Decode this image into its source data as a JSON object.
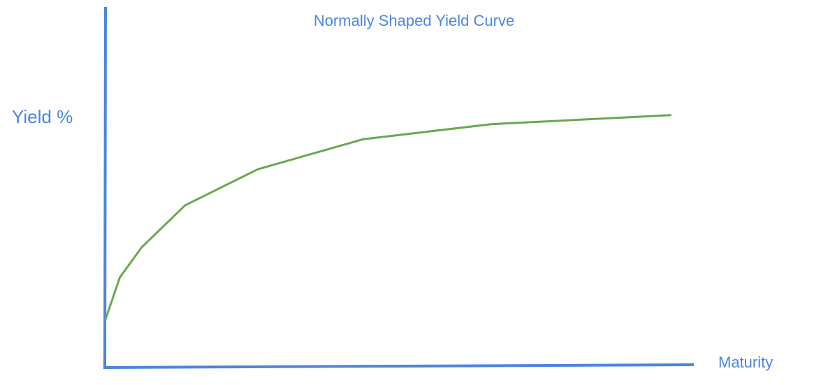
{
  "chart_data": {
    "type": "line",
    "title": "Normally Shaped Yield Curve",
    "xlabel": "Maturity",
    "ylabel": "Yield %",
    "series": [
      {
        "values": [
          {
            "x": 0.0,
            "y": 0.16
          },
          {
            "x": 2.5,
            "y": 0.3
          },
          {
            "x": 6.3,
            "y": 0.4
          },
          {
            "x": 13.9,
            "y": 0.54
          },
          {
            "x": 26.6,
            "y": 0.66
          },
          {
            "x": 45.0,
            "y": 0.76
          },
          {
            "x": 67.3,
            "y": 0.81
          },
          {
            "x": 98.6,
            "y": 0.84
          }
        ]
      }
    ],
    "xlim": [
      0,
      100
    ],
    "ylim": [
      0,
      1.2
    ],
    "grid": false,
    "colors": {
      "axis": "#4a86e0",
      "line": "#6aa84f",
      "text": "#4a86e0"
    }
  }
}
